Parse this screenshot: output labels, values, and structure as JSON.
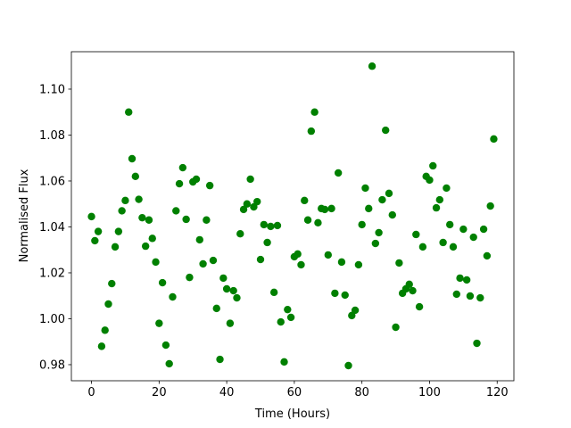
{
  "chart_data": {
    "type": "scatter",
    "x_label": "Time (Hours)",
    "y_label": "Normalised Flux",
    "color": "#008000",
    "x": [
      0,
      1,
      2,
      3,
      4,
      5,
      6,
      7,
      8,
      9,
      10,
      11,
      12,
      13,
      14,
      15,
      16,
      17,
      18,
      19,
      20,
      21,
      22,
      23,
      24,
      25,
      26,
      27,
      28,
      29,
      30,
      31,
      32,
      33,
      34,
      35,
      36,
      37,
      38,
      39,
      40,
      41,
      42,
      43,
      44,
      45,
      46,
      47,
      48,
      49,
      50,
      51,
      52,
      53,
      54,
      55,
      56,
      57,
      58,
      59,
      60,
      61,
      62,
      63,
      64,
      65,
      66,
      67,
      68,
      69,
      70,
      71,
      72,
      73,
      74,
      75,
      76,
      77,
      78,
      79,
      80,
      81,
      82,
      83,
      84,
      85,
      86,
      87,
      88,
      89,
      90,
      91,
      92,
      93,
      94,
      95,
      96,
      97,
      98,
      99,
      100,
      101,
      102,
      103,
      104,
      105,
      106,
      107,
      108,
      109,
      110,
      111,
      112,
      113,
      114,
      115,
      116,
      117,
      118,
      119
    ],
    "values": [
      1.0445,
      1.034,
      1.038,
      0.988,
      0.995,
      1.0064,
      1.0153,
      1.0313,
      1.038,
      1.047,
      1.0515,
      1.09,
      1.0697,
      1.062,
      1.052,
      1.044,
      1.0316,
      1.043,
      1.035,
      1.0247,
      0.998,
      1.0157,
      0.9885,
      0.9804,
      1.0095,
      1.047,
      1.0588,
      1.0658,
      1.0433,
      1.018,
      1.0596,
      1.0608,
      1.0344,
      1.0239,
      1.043,
      1.058,
      1.0254,
      1.0045,
      0.9823,
      1.0177,
      1.013,
      0.998,
      1.0122,
      1.0091,
      1.037,
      1.0476,
      1.05,
      1.0608,
      1.0487,
      1.051,
      1.0258,
      1.041,
      1.0332,
      1.0402,
      1.0115,
      1.0406,
      0.9986,
      0.9812,
      1.004,
      1.0006,
      1.027,
      1.0282,
      1.0235,
      1.0515,
      1.043,
      1.0817,
      1.09,
      1.0418,
      1.048,
      1.0476,
      1.0278,
      1.048,
      1.0111,
      1.0635,
      1.0247,
      1.0103,
      0.9796,
      1.0014,
      1.0037,
      1.0235,
      1.041,
      1.0569,
      1.048,
      1.11,
      1.0328,
      1.0375,
      1.0518,
      1.0821,
      1.0546,
      1.0452,
      0.9963,
      1.0243,
      1.0111,
      1.013,
      1.015,
      1.0122,
      1.0367,
      1.0052,
      1.0313,
      1.062,
      1.0604,
      1.0666,
      1.0483,
      1.0518,
      1.0332,
      1.0569,
      1.041,
      1.0313,
      1.0107,
      1.0177,
      1.039,
      1.0169,
      1.0099,
      1.0355,
      0.9893,
      1.0091,
      1.039,
      1.0274,
      1.0491,
      1.0783
    ],
    "xlim": [
      -5.95,
      124.95
    ],
    "ylim": [
      0.973,
      1.1163
    ],
    "xticks": [
      0,
      20,
      40,
      60,
      80,
      100,
      120
    ],
    "yticks": [
      0.98,
      {
        "value": 1.0,
        "label": "1.00"
      },
      1.02,
      1.04,
      1.06,
      1.08,
      {
        "value": 1.1,
        "label": "1.10"
      }
    ],
    "grid": false
  }
}
